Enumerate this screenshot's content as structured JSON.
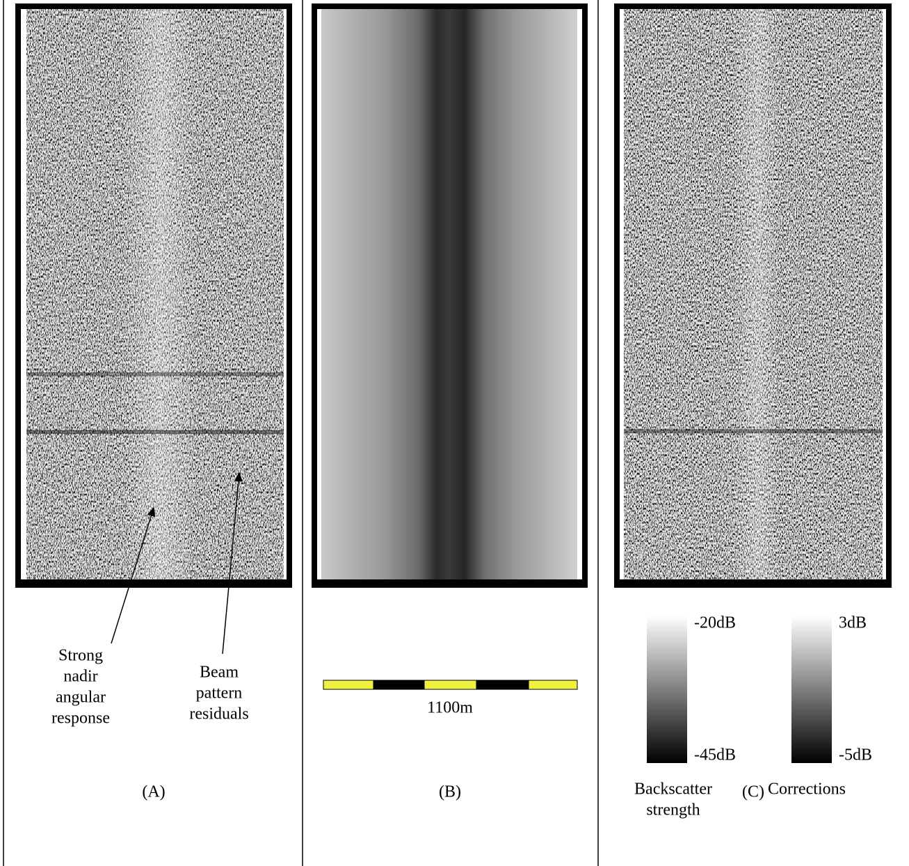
{
  "panels": [
    {
      "label": "(A)",
      "annotations": [
        {
          "lines": [
            "Strong",
            "nadir",
            "angular",
            "response"
          ]
        },
        {
          "lines": [
            "Beam",
            "pattern",
            "residuals"
          ]
        }
      ]
    },
    {
      "label": "(B)",
      "scale_bar": "1100m"
    },
    {
      "label": "(C)",
      "colorbars": [
        {
          "top": "-20dB",
          "bottom": "-45dB",
          "caption": [
            "Backscatter",
            "strength"
          ]
        },
        {
          "top": "3dB",
          "bottom": "-5dB",
          "caption": [
            "Corrections"
          ]
        }
      ]
    }
  ]
}
